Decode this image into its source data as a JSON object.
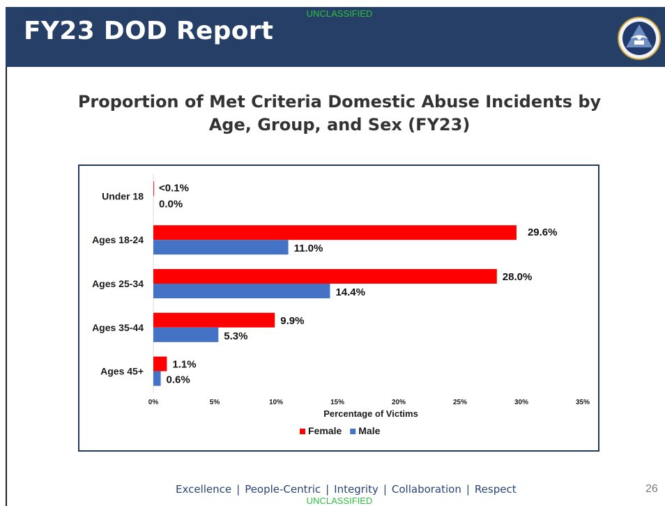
{
  "header": {
    "classification_top": "UNCLASSIFIED",
    "title": "FY23 DOD Report",
    "seal_icon": "dod-seal-icon"
  },
  "footer": {
    "values": [
      "Excellence",
      "People-Centric",
      "Integrity",
      "Collaboration",
      "Respect"
    ],
    "separator": "|",
    "slide_number": "26",
    "classification_bottom": "UNCLASSIFIED"
  },
  "colors": {
    "header_background": "#263f66",
    "classification": "#2fbf3f",
    "female": "#ff0000",
    "male": "#4472c4"
  },
  "chart_data": {
    "type": "bar",
    "orientation": "horizontal",
    "title": "Proportion of Met Criteria Domestic Abuse Incidents by Age, Group, and Sex (FY23)",
    "xlabel": "Percentage of Victims",
    "ylabel": "",
    "categories": [
      "Under 18",
      "Ages 18-24",
      "Ages 25-34",
      "Ages 35-44",
      "Ages 45+"
    ],
    "series": [
      {
        "name": "Female",
        "color": "#ff0000",
        "values": [
          0.05,
          29.6,
          28.0,
          9.9,
          1.1
        ],
        "labels": [
          "<0.1%",
          "29.6%",
          "28.0%",
          "9.9%",
          "1.1%"
        ]
      },
      {
        "name": "Male",
        "color": "#4472c4",
        "values": [
          0.0,
          11.0,
          14.4,
          5.3,
          0.6
        ],
        "labels": [
          "0.0%",
          "11.0%",
          "14.4%",
          "5.3%",
          "0.6%"
        ]
      }
    ],
    "xlim": [
      0,
      35
    ],
    "xticks": [
      "0%",
      "5%",
      "10%",
      "15%",
      "20%",
      "25%",
      "30%",
      "35%"
    ],
    "grid": false,
    "legend_position": "bottom"
  }
}
